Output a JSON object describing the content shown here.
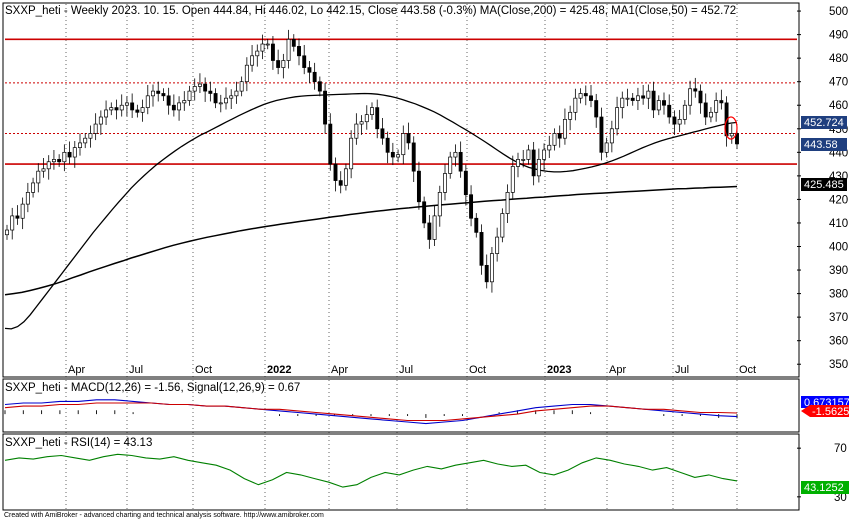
{
  "title_main": "SXXP_heti - Weekly 2023. 10. 15. Open 444.84, Hi 446.02, Lo 442.15, Close 443.58 (-0.3%) MA(Close,200) = 425.48, MA1(Close,50) = 452.72",
  "title_macd": "SXXP_heti - MACD(12,26) = -1.56, Signal(12,26,9) = 0.67",
  "title_rsi": "SXXP_heti - RSI(14) = 43.13",
  "footer": "Created with AmiBroker - advanced charting and technical analysis software. http://www.amibroker.com",
  "colors": {
    "up": "#ffffff",
    "down": "#000000",
    "candle_outline": "#000000",
    "ma200": "#000000",
    "ma50": "#000000",
    "hline_solid": "#cc0000",
    "hline_dotted": "#cc0000",
    "macd": "#0000cc",
    "signal": "#cc0000",
    "rsi": "#008000",
    "badge_ma50": "#1f3f7f",
    "badge_close": "#1f3f7f",
    "badge_ma200": "#000000",
    "badge_macd": "#0000ff",
    "badge_signal": "#ff0000",
    "badge_rsi": "#00b000",
    "highlight_ellipse": "#ff0000"
  },
  "chart_data": [
    {
      "type": "candlestick",
      "title": "SXXP_heti - Weekly 2023. 10. 15. Open 444.84, Hi 446.02, Lo 442.15, Close 443.58 (-0.3%) MA(Close,200) = 425.48, MA1(Close,50) = 452.72",
      "x_ticks": [
        "Apr",
        "Jul",
        "Oct",
        "2022",
        "Apr",
        "Jul",
        "Oct",
        "2023",
        "Apr",
        "Jul",
        "Oct"
      ],
      "y_ticks": [
        "500",
        "490",
        "480",
        "470",
        "460",
        "450",
        "440",
        "430",
        "420",
        "410",
        "400",
        "390",
        "380",
        "370",
        "360",
        "350"
      ],
      "ylim": [
        345,
        503
      ],
      "last_values": {
        "ma50": "452.724",
        "close": "443.58",
        "ma200": "425.485"
      },
      "horizontal_lines": [
        {
          "value": 488,
          "style": "solid"
        },
        {
          "value": 469.5,
          "style": "dotted"
        },
        {
          "value": 448,
          "style": "dotted"
        },
        {
          "value": 435,
          "style": "solid"
        }
      ],
      "closes": [
        407,
        413,
        412,
        418,
        423,
        427,
        432,
        433,
        436,
        437,
        436,
        440,
        438,
        442,
        444,
        446,
        448,
        452,
        455,
        458,
        459,
        458,
        460,
        461,
        458,
        457,
        459,
        464,
        466,
        465,
        464,
        460,
        458,
        461,
        462,
        466,
        468,
        469,
        466,
        465,
        461,
        461,
        463,
        464,
        466,
        470,
        477,
        481,
        483,
        486,
        486,
        479,
        476,
        479,
        488,
        485,
        481,
        476,
        474,
        470,
        466,
        452,
        435,
        428,
        426,
        433,
        446,
        452,
        453,
        456,
        459,
        450,
        446,
        440,
        438,
        439,
        448,
        444,
        432,
        419,
        410,
        403,
        413,
        423,
        431,
        438,
        440,
        432,
        422,
        412,
        406,
        392,
        385,
        397,
        404,
        414,
        423,
        434,
        437,
        437,
        441,
        430,
        437,
        441,
        443,
        448,
        446,
        454,
        457,
        463,
        465,
        464,
        462,
        455,
        440,
        444,
        450,
        459,
        463,
        463,
        462,
        464,
        463,
        466,
        458,
        462,
        460,
        455,
        452,
        454,
        460,
        467,
        466,
        461,
        455,
        457,
        462,
        461,
        447,
        448,
        443.58
      ],
      "ma200": [
        379.5,
        380,
        380.5,
        381.3,
        382.2,
        383.2,
        384.2,
        385.4,
        386.7,
        387.9,
        389.2,
        390.4,
        391.6,
        392.8,
        393.9,
        395.1,
        396.2,
        397.3,
        398.4,
        399.5,
        400.5,
        401.4,
        402.3,
        403.1,
        403.9,
        404.6,
        405.3,
        406,
        406.7,
        407.3,
        407.9,
        408.5,
        409,
        409.6,
        410.1,
        410.6,
        411.1,
        411.6,
        412.1,
        412.6,
        413.1,
        413.6,
        414,
        414.5,
        414.9,
        415.3,
        415.7,
        416.1,
        416.4,
        416.8,
        417.1,
        417.4,
        417.7,
        418,
        418.3,
        418.6,
        418.9,
        419.2,
        419.5,
        419.7,
        420,
        420.3,
        420.5,
        420.8,
        421,
        421.3,
        421.6,
        421.8,
        422.1,
        422.3,
        422.5,
        422.7,
        422.9,
        423.1,
        423.3,
        423.5,
        423.7,
        423.9,
        424.1,
        424.3,
        424.5,
        424.6,
        424.8,
        424.9,
        425.1,
        425.2,
        425.3,
        425.485
      ],
      "ma50": [
        365.2,
        365,
        366,
        368,
        371,
        374.5,
        378,
        381.5,
        385,
        388.5,
        392,
        395.5,
        399,
        402.5,
        406,
        409.3,
        412.5,
        415.7,
        418.8,
        421.8,
        424.8,
        427.5,
        430,
        432.4,
        434.7,
        436.8,
        438.8,
        440.7,
        442.5,
        444.2,
        445.8,
        447.3,
        448.6,
        450,
        451.4,
        452.8,
        454.1,
        455.5,
        456.8,
        458,
        459.2,
        460.3,
        461.2,
        462,
        462.6,
        463.1,
        463.6,
        463.9,
        464.1,
        464.2,
        464.3,
        464.4,
        464.5,
        464.6,
        464.7,
        464.8,
        464.9,
        465,
        464.9,
        464.7,
        464.3,
        463.8,
        463.2,
        462.4,
        461.5,
        460.6,
        459.5,
        458.4,
        457.2,
        455.8,
        454.3,
        452.8,
        451.2,
        449.6,
        448,
        446.3,
        444.6,
        442.8,
        441,
        439.2,
        437.5,
        436,
        434.7,
        433.6,
        432.9,
        432.3,
        431.9,
        431.7,
        431.7,
        431.9,
        432.2,
        432.7,
        433.2,
        433.8,
        434.5,
        435.3,
        436.2,
        437.2,
        438.3,
        439.5,
        440.7,
        441.9,
        443,
        444,
        444.9,
        445.7,
        446.4,
        447.1,
        447.8,
        448.5,
        449.2,
        449.9,
        450.6,
        451.3,
        451.9,
        452.4,
        452.724
      ]
    },
    {
      "type": "line",
      "title": "SXXP_heti - MACD(12,26) = -1.56, Signal(12,26,9) = 0.67",
      "badges": [
        "0.673157",
        "-1.56257"
      ],
      "series": [
        {
          "name": "MACD(12,26)",
          "values": [
            6,
            7,
            7,
            8,
            8,
            9,
            9,
            8,
            7,
            6,
            6,
            5,
            5,
            4,
            3,
            2,
            1,
            0,
            -1,
            -2,
            -3,
            -4,
            -5,
            -6,
            -5,
            -4,
            -2,
            0,
            2,
            4,
            5,
            6,
            6,
            5,
            4,
            3,
            2,
            1,
            0,
            -1,
            -1.56
          ]
        },
        {
          "name": "Signal(12,26,9)",
          "values": [
            4,
            5,
            5,
            6,
            6,
            7,
            7,
            7,
            7,
            6,
            6,
            5,
            5,
            4,
            3,
            3,
            2,
            1,
            0,
            -1,
            -2,
            -3,
            -4,
            -4,
            -4,
            -3,
            -2,
            -1,
            0,
            2,
            3,
            4,
            5,
            5,
            4,
            3,
            3,
            2,
            1,
            1,
            0.67
          ]
        }
      ]
    },
    {
      "type": "line",
      "title": "SXXP_heti - RSI(14) = 43.13",
      "y_ticks": [
        "70",
        "30"
      ],
      "ylim": [
        20,
        80
      ],
      "badges": [
        "43.1252"
      ],
      "series": [
        {
          "name": "RSI(14)",
          "values": [
            60,
            62,
            61,
            63,
            64,
            62,
            60,
            63,
            65,
            64,
            62,
            61,
            63,
            60,
            58,
            56,
            52,
            45,
            40,
            44,
            50,
            48,
            45,
            42,
            38,
            40,
            46,
            50,
            48,
            52,
            55,
            53,
            56,
            58,
            60,
            57,
            55,
            56,
            50,
            48,
            52,
            58,
            62,
            60,
            57,
            55,
            52,
            54,
            50,
            46,
            48,
            45,
            43.13
          ]
        }
      ]
    }
  ]
}
